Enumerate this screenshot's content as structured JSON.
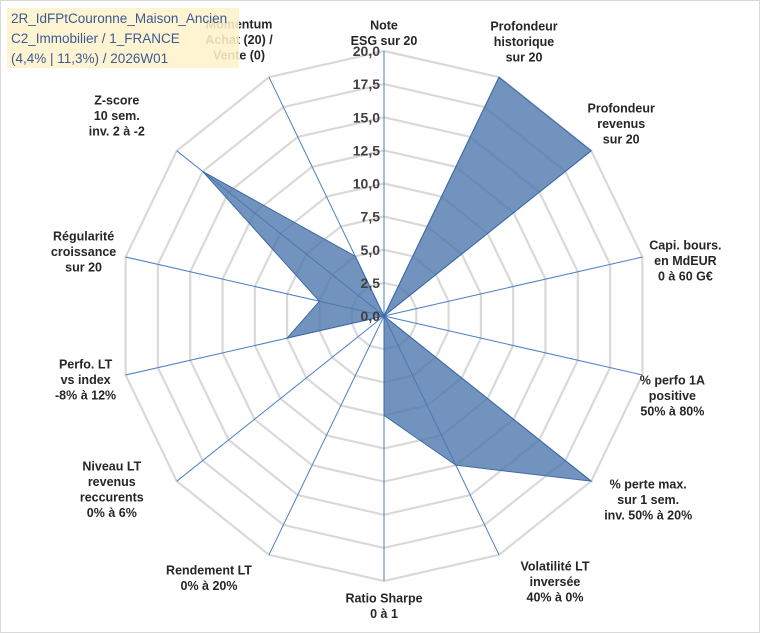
{
  "title_lines": [
    "2R_IdFPtCouronne_Maison_Ancien",
    "C2_Immobilier / 1_FRANCE",
    "(4,4% | 11,3%) / 2026W01"
  ],
  "chart_data": {
    "type": "radar",
    "r_range": [
      0,
      20
    ],
    "r_ticks": [
      "0,0",
      "2,5",
      "5,0",
      "7,5",
      "10,0",
      "12,5",
      "15,0",
      "17,5",
      "20,0"
    ],
    "grid": true,
    "legend": "none",
    "fill_color": "#4a75aa",
    "axes": [
      {
        "label": [
          "Note",
          "ESG sur 20"
        ],
        "value": 0
      },
      {
        "label": [
          "Profondeur",
          "historique",
          "sur 20"
        ],
        "value": 20
      },
      {
        "label": [
          "Profondeur",
          "revenus",
          "sur 20"
        ],
        "value": 20
      },
      {
        "label": [
          "Capi. bours.",
          "en MdEUR",
          "0 à 60 G€"
        ],
        "value": 0
      },
      {
        "label": [
          "% perfo 1A",
          "positive",
          "50% à 80%"
        ],
        "value": 0
      },
      {
        "label": [
          "% perte max.",
          "sur 1 sem.",
          "inv. 50% à 20%"
        ],
        "value": 20
      },
      {
        "label": [
          "Volatilité LT",
          "inversée",
          "40% à 0%"
        ],
        "value": 12.5
      },
      {
        "label": [
          "Ratio Sharpe",
          "0 à 1"
        ],
        "value": 7.5
      },
      {
        "label": [
          "Rendement LT",
          "0% à 20%"
        ],
        "value": 0
      },
      {
        "label": [
          "Niveau LT",
          "revenus",
          "reccurents",
          "0% à 6%"
        ],
        "value": 0
      },
      {
        "label": [
          "Perfo. LT",
          "vs index",
          "-8% à 12%"
        ],
        "value": 7.5
      },
      {
        "label": [
          "Régularité",
          "croissance",
          "sur 20"
        ],
        "value": 5
      },
      {
        "label": [
          "Z-score",
          "10 sem.",
          "inv. 2 à -2"
        ],
        "value": 17.5
      },
      {
        "label": [
          "Momentum",
          "Achat (20) /",
          "Vente (0)"
        ],
        "value": 5
      }
    ]
  }
}
